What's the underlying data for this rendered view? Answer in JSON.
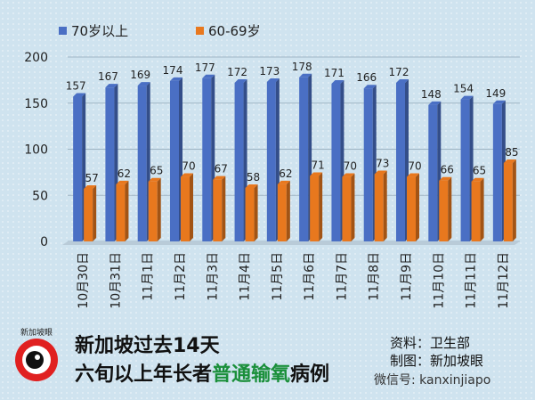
{
  "chart_data": {
    "type": "bar",
    "categories": [
      "10月30日",
      "10月31日",
      "11月1日",
      "11月2日",
      "11月3日",
      "11月4日",
      "11月5日",
      "11月6日",
      "11月7日",
      "11月8日",
      "11月9日",
      "11月10日",
      "11月11日",
      "11月12日"
    ],
    "series": [
      {
        "name": "70岁以上",
        "color": "#4a6fc4",
        "values": [
          157,
          167,
          169,
          174,
          177,
          172,
          173,
          178,
          171,
          166,
          172,
          148,
          154,
          149
        ]
      },
      {
        "name": "60-69岁",
        "color": "#e8781e",
        "values": [
          57,
          62,
          65,
          70,
          67,
          58,
          62,
          71,
          70,
          73,
          70,
          66,
          65,
          85
        ]
      }
    ],
    "yticks": [
      0,
      50,
      100,
      150,
      200
    ],
    "ylim": [
      0,
      200
    ],
    "legend_position": "top-left"
  },
  "footer": {
    "title_line1": "新加坡过去14天",
    "title_line2_prefix": "六旬以上年长者",
    "title_line2_highlight": "普通输氧",
    "title_line2_suffix": "病例",
    "source_label": "资料：",
    "source_value": "卫生部",
    "maker_label": "制图：",
    "maker_value": "新加坡眼",
    "wechat": "微信号: kanxinjiapo",
    "logo_text": "新加坡眼"
  }
}
